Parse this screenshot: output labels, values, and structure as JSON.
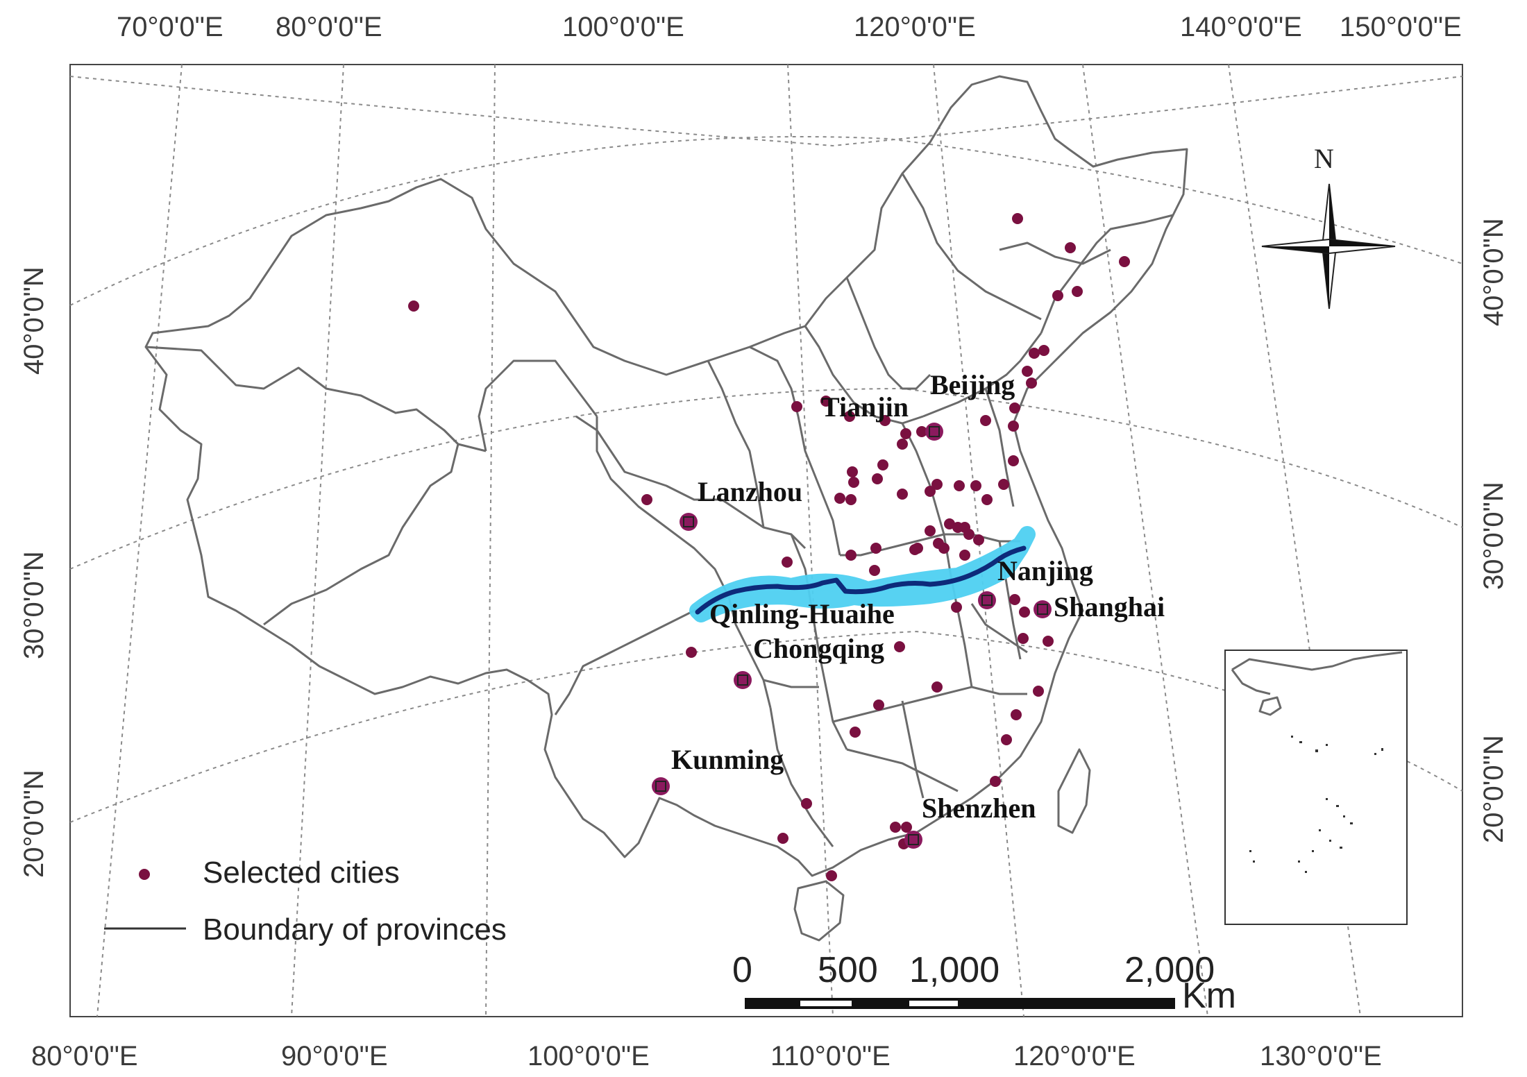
{
  "top_lon_labels": [
    "70°0'0\"E",
    "80°0'0\"E",
    "100°0'0\"E",
    "120°0'0\"E",
    "140°0'0\"E",
    "150°0'0\"E"
  ],
  "bottom_lon_labels": [
    "80°0'0\"E",
    "90°0'0\"E",
    "100°0'0\"E",
    "110°0'0\"E",
    "120°0'0\"E",
    "130°0'0\"E"
  ],
  "left_lat_labels": [
    "40°0'0\"N",
    "30°0'0\"N",
    "20°0'0\"N"
  ],
  "right_lat_labels": [
    "40°0'0\"N",
    "30°0'0\"N",
    "20°0'0\"N"
  ],
  "north_arrow": {
    "label": "N",
    "icon": "compass-rose-icon"
  },
  "cities": [
    {
      "name": "Beijing"
    },
    {
      "name": "Tianjin"
    },
    {
      "name": "Lanzhou"
    },
    {
      "name": "Nanjing"
    },
    {
      "name": "Shanghai"
    },
    {
      "name": "Chongqing"
    },
    {
      "name": "Kunming"
    },
    {
      "name": "Shenzhen"
    }
  ],
  "dividing_line": {
    "name": "Qinling-Huaihe"
  },
  "legend": {
    "selected_cities": "Selected cities",
    "boundary": "Boundary of provinces"
  },
  "scale_bar": {
    "ticks": [
      "0",
      "500",
      "1,000",
      "2,000"
    ],
    "unit": "Km"
  },
  "colors": {
    "city_dot": "#7a1040",
    "highlight_city": "#8b1a5e",
    "dividing_line": "#0d2a7a",
    "dividing_band": "#4fd0f2",
    "border": "#6a6a6a"
  }
}
